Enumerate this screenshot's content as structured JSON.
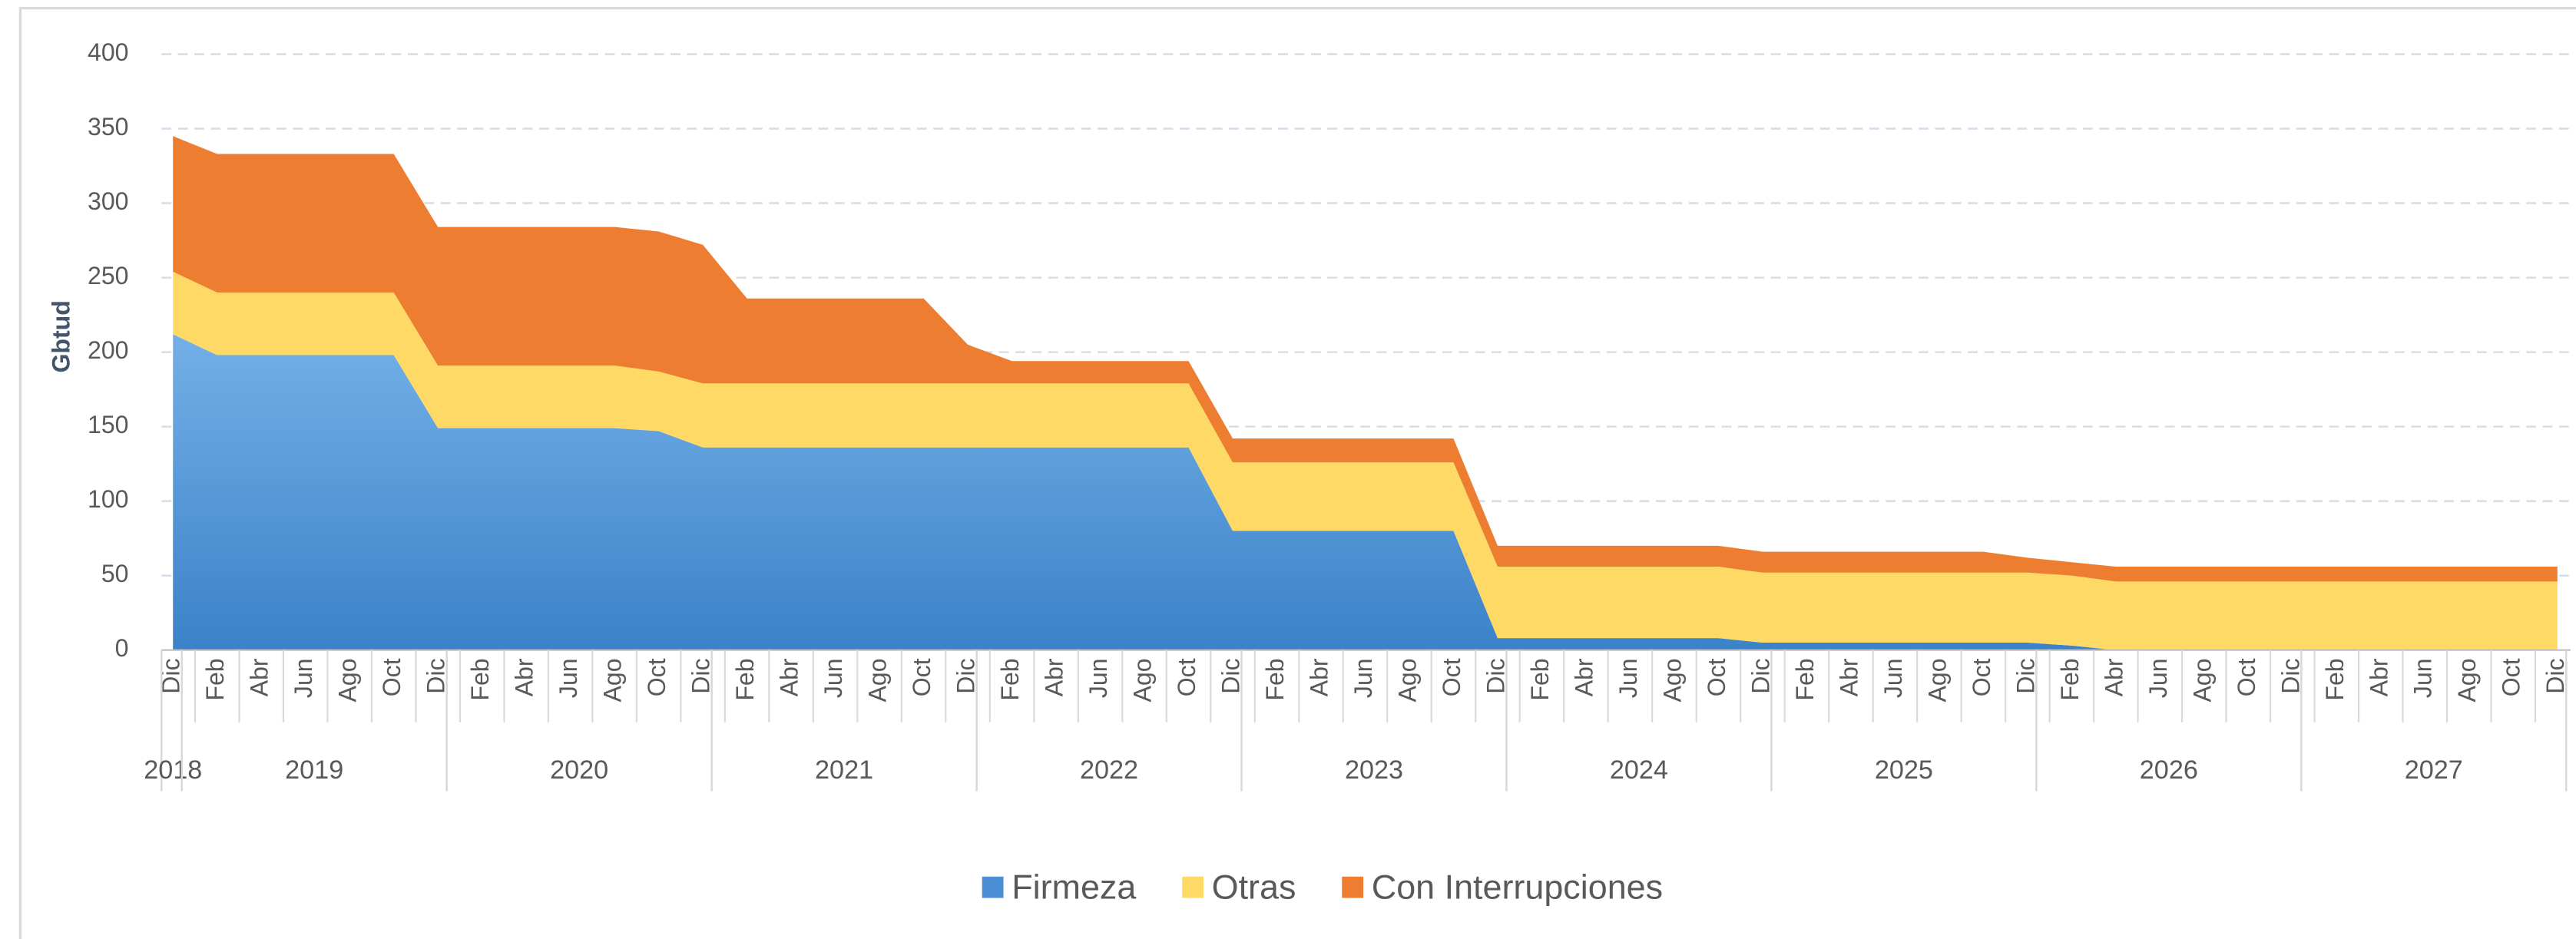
{
  "chart_data": {
    "type": "area",
    "y_label": "Gbtud",
    "categories": [
      "Dic",
      "Feb",
      "Abr",
      "Jun",
      "Ago",
      "Oct",
      "Dic",
      "Feb",
      "Abr",
      "Jun",
      "Ago",
      "Oct",
      "Dic",
      "Feb",
      "Abr",
      "Jun",
      "Ago",
      "Oct",
      "Dic",
      "Feb",
      "Abr",
      "Jun",
      "Ago",
      "Oct",
      "Dic",
      "Feb",
      "Abr",
      "Jun",
      "Ago",
      "Oct",
      "Dic",
      "Feb",
      "Abr",
      "Jun",
      "Ago",
      "Oct",
      "Dic",
      "Feb",
      "Abr",
      "Jun",
      "Ago",
      "Oct",
      "Dic",
      "Feb",
      "Abr",
      "Jun",
      "Ago",
      "Oct",
      "Dic",
      "Feb",
      "Abr",
      "Jun",
      "Ago",
      "Oct",
      "Dic"
    ],
    "years": [
      "2018",
      "2019",
      "2020",
      "2021",
      "2022",
      "2023",
      "2024",
      "2025",
      "2026",
      "2027"
    ],
    "series": [
      {
        "name": "Firmeza",
        "color": "#4a8fd3",
        "values": [
          212,
          198,
          198,
          198,
          198,
          198,
          149,
          149,
          149,
          149,
          149,
          147,
          136,
          136,
          136,
          136,
          136,
          136,
          136,
          136,
          136,
          136,
          136,
          136,
          80,
          80,
          80,
          80,
          80,
          80,
          8,
          8,
          8,
          8,
          8,
          8,
          5,
          5,
          5,
          5,
          5,
          5,
          5,
          3,
          0,
          0,
          0,
          0,
          0,
          0,
          0,
          0,
          0,
          0,
          0
        ]
      },
      {
        "name": "Otras",
        "color": "#ffd966",
        "values": [
          42,
          42,
          42,
          42,
          42,
          42,
          42,
          42,
          42,
          42,
          42,
          40,
          43,
          43,
          43,
          43,
          43,
          43,
          43,
          43,
          43,
          43,
          43,
          43,
          46,
          46,
          46,
          46,
          46,
          46,
          48,
          48,
          48,
          48,
          48,
          48,
          47,
          47,
          47,
          47,
          47,
          47,
          47,
          47,
          46,
          46,
          46,
          46,
          46,
          46,
          46,
          46,
          46,
          46,
          46
        ]
      },
      {
        "name": "Con Interrupciones",
        "color": "#ed7d31",
        "values": [
          91,
          93,
          93,
          93,
          93,
          93,
          93,
          93,
          93,
          93,
          93,
          94,
          93,
          57,
          57,
          57,
          57,
          57,
          26,
          15,
          15,
          15,
          15,
          15,
          16,
          16,
          16,
          16,
          16,
          16,
          14,
          14,
          14,
          14,
          14,
          14,
          14,
          14,
          14,
          14,
          14,
          14,
          10,
          9,
          10,
          10,
          10,
          10,
          10,
          10,
          10,
          10,
          10,
          10,
          10
        ]
      }
    ],
    "stacked": true,
    "ylim": [
      0,
      400
    ],
    "yticks": [
      0,
      50,
      100,
      150,
      200,
      250,
      300,
      350,
      400
    ],
    "grid": true,
    "legend": "bottom"
  }
}
